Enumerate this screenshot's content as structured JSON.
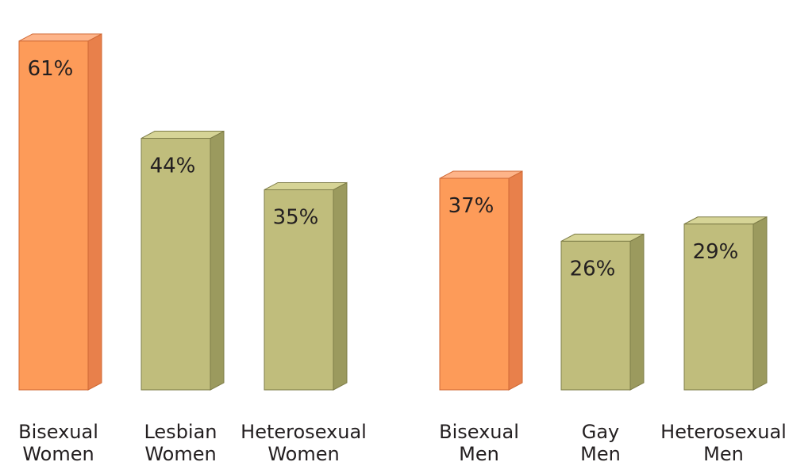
{
  "chart_data": {
    "type": "bar",
    "title": "",
    "xlabel": "",
    "ylabel": "",
    "ylim": [
      0,
      65
    ],
    "grid": false,
    "categories": [
      [
        "Bisexual",
        "Women"
      ],
      [
        "Lesbian",
        "Women"
      ],
      [
        "Heterosexual",
        "Women"
      ],
      [
        "Bisexual",
        "Men"
      ],
      [
        "Gay",
        "Men"
      ],
      [
        "Heterosexual",
        "Men"
      ]
    ],
    "values": [
      61,
      44,
      35,
      37,
      26,
      29
    ],
    "value_labels": [
      "61%",
      "44%",
      "35%",
      "37%",
      "26%",
      "29%"
    ],
    "bar_colors": [
      "orange",
      "olive",
      "olive",
      "orange",
      "olive",
      "olive"
    ]
  },
  "colors": {
    "orange": {
      "front": "#fd9b59",
      "side": "#e8804b",
      "top": "#feb489",
      "edge": "#d06a36"
    },
    "olive": {
      "front": "#c0bd7c",
      "side": "#9b9a5e",
      "top": "#d6d496",
      "edge": "#7e7d48"
    }
  }
}
